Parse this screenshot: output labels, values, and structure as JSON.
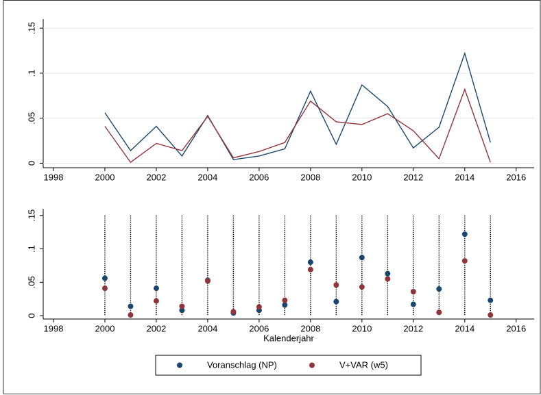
{
  "chart_data": [
    {
      "type": "line",
      "x": [
        2000,
        2001,
        2002,
        2003,
        2004,
        2005,
        2006,
        2007,
        2008,
        2009,
        2010,
        2011,
        2012,
        2013,
        2014,
        2015
      ],
      "series": [
        {
          "name": "Voranschlag (NP)",
          "color": "#1a476f",
          "values": [
            0.056,
            0.014,
            0.041,
            0.008,
            0.053,
            0.004,
            0.008,
            0.016,
            0.08,
            0.021,
            0.087,
            0.063,
            0.017,
            0.04,
            0.122,
            0.023
          ]
        },
        {
          "name": "V+VAR (w5)",
          "color": "#90353b",
          "values": [
            0.041,
            0.001,
            0.022,
            0.014,
            0.052,
            0.006,
            0.013,
            0.023,
            0.069,
            0.046,
            0.043,
            0.055,
            0.036,
            0.005,
            0.082,
            0.001
          ]
        }
      ],
      "xlim": [
        1997.6,
        2016.7
      ],
      "ylim": [
        -0.005,
        0.16
      ],
      "xticks": [
        1998,
        2000,
        2002,
        2004,
        2006,
        2008,
        2010,
        2012,
        2014,
        2016
      ],
      "yticks": [
        0,
        {
          "value": 0.05,
          "label": ".05"
        },
        {
          "value": 0.1,
          "label": ".1"
        },
        {
          "value": 0.15,
          "label": ".15"
        }
      ],
      "grid": true
    },
    {
      "type": "scatter",
      "x": [
        2000,
        2001,
        2002,
        2003,
        2004,
        2005,
        2006,
        2007,
        2008,
        2009,
        2010,
        2011,
        2012,
        2013,
        2014,
        2015
      ],
      "xlabel": "Kalenderjahr",
      "series": [
        {
          "name": "Voranschlag (NP)",
          "color": "#1a476f",
          "values": [
            0.056,
            0.014,
            0.041,
            0.008,
            0.053,
            0.004,
            0.008,
            0.016,
            0.08,
            0.021,
            0.087,
            0.063,
            0.017,
            0.04,
            0.122,
            0.023
          ]
        },
        {
          "name": "V+VAR (w5)",
          "color": "#90353b",
          "values": [
            0.041,
            0.001,
            0.022,
            0.014,
            0.052,
            0.006,
            0.013,
            0.023,
            0.069,
            0.046,
            0.043,
            0.055,
            0.036,
            0.005,
            0.082,
            0.001
          ]
        }
      ],
      "xlim": [
        1997.6,
        2016.7
      ],
      "ylim": [
        -0.005,
        0.16
      ],
      "xticks": [
        1998,
        2000,
        2002,
        2004,
        2006,
        2008,
        2010,
        2012,
        2014,
        2016
      ],
      "yticks": [
        0,
        {
          "value": 0.05,
          "label": ".05"
        },
        {
          "value": 0.1,
          "label": ".1"
        },
        {
          "value": 0.15,
          "label": ".15"
        }
      ],
      "grid": false,
      "legend": "bottom"
    }
  ]
}
